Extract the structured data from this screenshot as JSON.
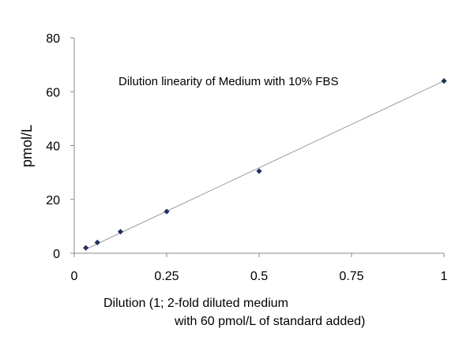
{
  "chart_data": {
    "type": "scatter",
    "annotation": "Dilution linearity of Medium with 10% FBS",
    "xlabel_lines": [
      "Dilution (1; 2-fold diluted medium",
      "with 60 pmol/L of standard added)"
    ],
    "ylabel": "pmol/L",
    "xlim": [
      0,
      1
    ],
    "ylim": [
      0,
      80
    ],
    "x_ticks": [
      0,
      0.25,
      0.5,
      0.75,
      1
    ],
    "x_tick_labels": [
      "0",
      "0.25",
      "0.5",
      "0.75",
      "1"
    ],
    "y_ticks": [
      0,
      20,
      40,
      60,
      80
    ],
    "y_tick_labels": [
      "0",
      "20",
      "40",
      "60",
      "80"
    ],
    "grid": false,
    "legend": "none",
    "series": [
      {
        "x": [
          0.03125,
          0.0625,
          0.125,
          0.25,
          0.5,
          1
        ],
        "y": [
          2,
          4,
          8,
          15.5,
          30.5,
          64
        ]
      }
    ],
    "trendline": {
      "x": [
        0.03125,
        1
      ],
      "y": [
        1.5,
        64
      ]
    },
    "colors": {
      "marker": "#1f2f5f",
      "trendline": "#9a9a9a",
      "axis": "#888888"
    }
  }
}
